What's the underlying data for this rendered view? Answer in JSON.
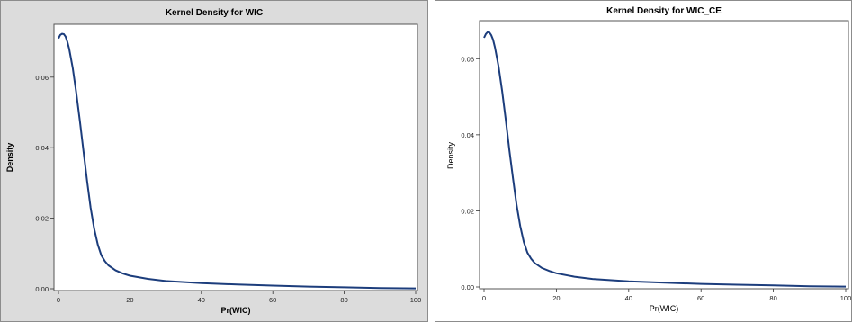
{
  "colors": {
    "curve": "#1c3d7c",
    "left_background": "#dcdcdc",
    "right_background": "#ffffff"
  },
  "chart_data": [
    {
      "type": "line",
      "title": "Kernel Density for WIC",
      "xlabel": "Pr(WIC)",
      "ylabel": "Density",
      "xlim": [
        0,
        100
      ],
      "ylim": [
        0,
        0.075
      ],
      "x_ticks": [
        "0",
        "20",
        "40",
        "60",
        "80",
        "100"
      ],
      "y_ticks": [
        "0.00",
        "0.02",
        "0.04",
        "0.06"
      ],
      "grid": false,
      "legend": "none",
      "series": [
        {
          "x": [
            0,
            0.5,
            1,
            1.5,
            2,
            2.5,
            3,
            4,
            5,
            6,
            7,
            8,
            9,
            10,
            11,
            12,
            13,
            14,
            16,
            18,
            20,
            25,
            30,
            40,
            50,
            60,
            70,
            80,
            90,
            100
          ],
          "y": [
            0.071,
            0.072,
            0.0723,
            0.0722,
            0.0715,
            0.07,
            0.068,
            0.0625,
            0.0555,
            0.0475,
            0.039,
            0.0305,
            0.023,
            0.017,
            0.0125,
            0.0095,
            0.0078,
            0.0066,
            0.0052,
            0.0043,
            0.0037,
            0.0028,
            0.0022,
            0.0016,
            0.0012,
            0.0009,
            0.0006,
            0.0004,
            0.0002,
            0.0001
          ]
        }
      ]
    },
    {
      "type": "line",
      "title": "Kernel Density for WIC_CE",
      "xlabel": "Pr(WIC)",
      "ylabel": "Density",
      "xlim": [
        0,
        100
      ],
      "ylim": [
        0,
        0.07
      ],
      "x_ticks": [
        "0",
        "20",
        "40",
        "60",
        "80",
        "100"
      ],
      "y_ticks": [
        "0.00",
        "0.02",
        "0.04",
        "0.06"
      ],
      "grid": false,
      "legend": "none",
      "series": [
        {
          "x": [
            0,
            0.5,
            1,
            1.5,
            2,
            2.5,
            3,
            4,
            5,
            6,
            7,
            8,
            9,
            10,
            11,
            12,
            13,
            14,
            16,
            18,
            20,
            25,
            30,
            40,
            50,
            60,
            70,
            80,
            90,
            100
          ],
          "y": [
            0.0655,
            0.0665,
            0.067,
            0.0669,
            0.0662,
            0.065,
            0.063,
            0.058,
            0.0515,
            0.044,
            0.036,
            0.0285,
            0.0215,
            0.016,
            0.0118,
            0.009,
            0.0074,
            0.0063,
            0.005,
            0.0042,
            0.0036,
            0.0027,
            0.0021,
            0.0015,
            0.0011,
            0.0008,
            0.0006,
            0.0004,
            0.0002,
            0.0001
          ]
        }
      ]
    }
  ]
}
